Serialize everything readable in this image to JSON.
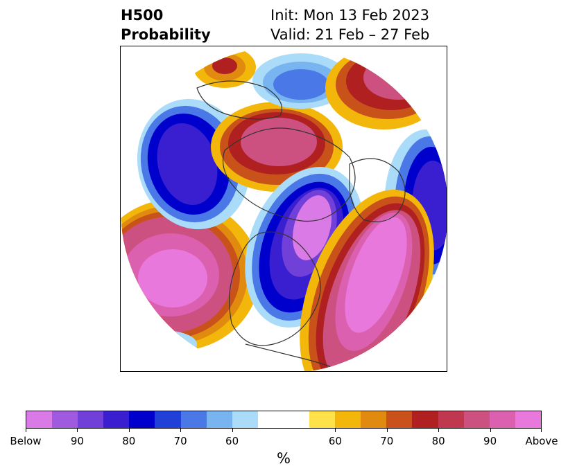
{
  "title": {
    "left_line1": "H500",
    "left_line2": "Probability",
    "right_line1": "Init: Mon 13 Feb 2023",
    "right_line2": "Valid: 21 Feb – 27 Feb"
  },
  "colorbar": {
    "unit": "%",
    "segments": [
      "#d97ae6",
      "#a05ae0",
      "#7040d8",
      "#3a1fd0",
      "#0000cc",
      "#2040d8",
      "#4a78e6",
      "#78b4f0",
      "#aadcfa",
      "#ffffff",
      "#ffffff",
      "#ffe14a",
      "#f2b70a",
      "#e08a10",
      "#c8521a",
      "#b02020",
      "#c03850",
      "#cc5080",
      "#dc60b0",
      "#e878dc"
    ],
    "tick_labels": [
      "Below",
      "90",
      "80",
      "70",
      "60",
      "60",
      "70",
      "80",
      "90",
      "Above"
    ]
  },
  "map": {
    "projection": "north-polar-stereographic",
    "field": "500 hPa height anomaly probability",
    "colors": {
      "above_deep": "#e878dc",
      "above_mid": "#cc5080",
      "above_red": "#b02020",
      "above_orange": "#e08a10",
      "above_yellow": "#f2b70a",
      "below_light": "#aadcfa",
      "below_blue": "#4a78e6",
      "below_deep": "#0000cc",
      "below_violet": "#7040d8",
      "below_purple": "#d97ae6"
    }
  }
}
